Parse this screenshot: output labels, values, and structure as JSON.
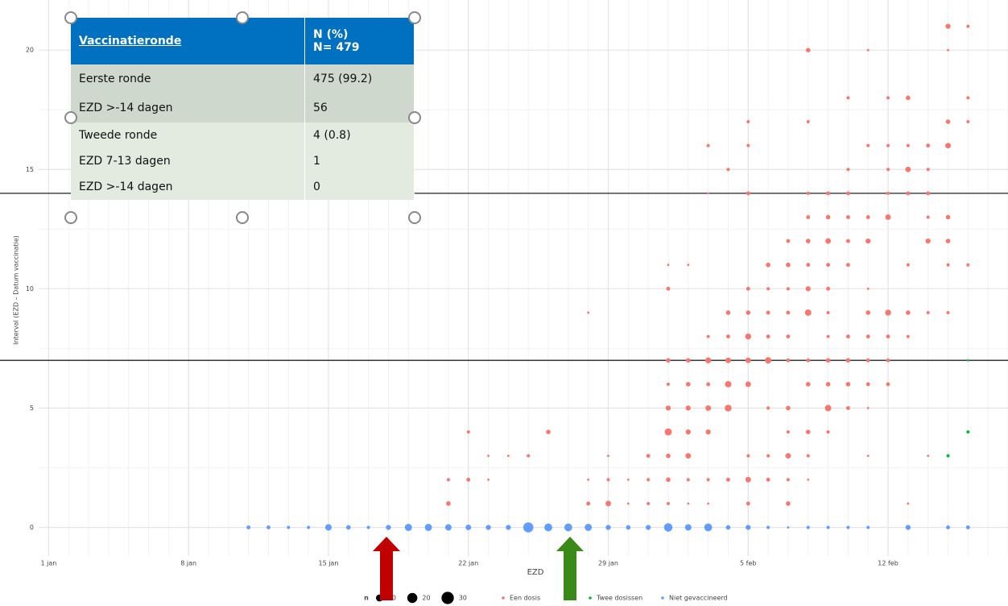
{
  "chart_data": {
    "type": "scatter",
    "x_label": "EZD",
    "y_label": "Interval (EZD – Datum vaccinatie)",
    "xlim": [
      -0.5,
      48
    ],
    "ylim": [
      -1.2,
      22.1
    ],
    "xticks": [
      {
        "value": 0,
        "label": "1 jan"
      },
      {
        "value": 7,
        "label": "8 jan"
      },
      {
        "value": 14,
        "label": "15 jan"
      },
      {
        "value": 21,
        "label": "22 jan"
      },
      {
        "value": 28,
        "label": "29 jan"
      },
      {
        "value": 35,
        "label": "5 feb"
      },
      {
        "value": 42,
        "label": "12 feb"
      }
    ],
    "yticks": [
      0,
      5,
      10,
      15,
      20
    ],
    "grid": true,
    "reference_lines": [
      7,
      14
    ],
    "size_legend": {
      "title": "n",
      "values": [
        10,
        20,
        30
      ]
    },
    "series": [
      {
        "name": "Een dosis",
        "color": "#f8766d",
        "x": [
          45,
          46,
          38,
          41,
          45,
          40,
          42,
          43,
          46,
          35,
          38,
          45,
          46,
          33,
          35,
          41,
          42,
          43,
          44,
          45,
          34,
          40,
          42,
          43,
          44,
          33,
          35,
          38,
          39,
          40,
          42,
          43,
          44,
          38,
          39,
          40,
          41,
          42,
          44,
          45,
          37,
          38,
          39,
          40,
          41,
          44,
          45,
          31,
          32,
          36,
          37,
          38,
          39,
          40,
          43,
          45,
          46,
          31,
          35,
          36,
          37,
          38,
          39,
          41,
          27,
          34,
          35,
          36,
          37,
          38,
          39,
          41,
          42,
          43,
          44,
          45,
          33,
          34,
          35,
          36,
          37,
          39,
          40,
          41,
          42,
          43,
          31,
          32,
          33,
          34,
          35,
          36,
          37,
          38,
          39,
          40,
          41,
          42,
          31,
          32,
          33,
          34,
          35,
          38,
          39,
          40,
          41,
          42,
          31,
          32,
          33,
          34,
          36,
          37,
          39,
          40,
          41,
          21,
          25,
          31,
          32,
          33,
          37,
          38,
          39,
          22,
          23,
          24,
          28,
          30,
          31,
          32,
          35,
          36,
          37,
          38,
          41,
          44,
          20,
          21,
          22,
          27,
          28,
          29,
          30,
          31,
          32,
          33,
          34,
          35,
          36,
          37,
          38,
          20,
          27,
          28,
          29,
          30,
          31,
          32,
          33,
          35,
          37,
          43
        ],
        "values": [
          21,
          21,
          20,
          20,
          20,
          18,
          18,
          18,
          18,
          17,
          17,
          17,
          17,
          16,
          16,
          16,
          16,
          16,
          16,
          16,
          15,
          15,
          15,
          15,
          15,
          14,
          14,
          14,
          14,
          14,
          14,
          14,
          14,
          13,
          13,
          13,
          13,
          13,
          13,
          13,
          12,
          12,
          12,
          12,
          12,
          12,
          12,
          11,
          11,
          11,
          11,
          11,
          11,
          11,
          11,
          11,
          11,
          10,
          10,
          10,
          10,
          10,
          10,
          10,
          9,
          9,
          9,
          9,
          9,
          9,
          9,
          9,
          9,
          9,
          9,
          9,
          8,
          8,
          8,
          8,
          8,
          8,
          8,
          8,
          8,
          8,
          7,
          7,
          7,
          7,
          7,
          7,
          7,
          7,
          7,
          7,
          7,
          7,
          6,
          6,
          6,
          6,
          6,
          6,
          6,
          6,
          6,
          6,
          5,
          5,
          5,
          5,
          5,
          5,
          5,
          5,
          5,
          4,
          4,
          4,
          4,
          4,
          4,
          4,
          4,
          3,
          3,
          3,
          3,
          3,
          3,
          3,
          3,
          3,
          3,
          3,
          3,
          3,
          2,
          2,
          2,
          2,
          2,
          2,
          2,
          2,
          2,
          2,
          2,
          2,
          2,
          2,
          2,
          1,
          1,
          1,
          1,
          1,
          1,
          1,
          1,
          1,
          1,
          1
        ],
        "sizes": [
          5,
          2,
          4,
          1,
          1,
          2,
          2,
          4,
          2,
          2,
          2,
          4,
          2,
          2,
          2,
          2,
          2,
          2,
          3,
          6,
          2,
          2,
          2,
          6,
          2,
          1,
          3,
          2,
          3,
          3,
          2,
          3,
          3,
          3,
          4,
          3,
          3,
          6,
          2,
          4,
          3,
          4,
          6,
          3,
          5,
          5,
          4,
          1,
          1,
          4,
          4,
          3,
          3,
          3,
          2,
          2,
          2,
          3,
          3,
          2,
          2,
          5,
          3,
          1,
          1,
          4,
          4,
          3,
          3,
          8,
          2,
          4,
          7,
          4,
          2,
          2,
          2,
          3,
          7,
          3,
          3,
          2,
          3,
          3,
          3,
          2,
          4,
          4,
          7,
          6,
          6,
          8,
          3,
          3,
          4,
          4,
          3,
          3,
          2,
          4,
          3,
          8,
          6,
          4,
          4,
          4,
          3,
          3,
          5,
          5,
          6,
          9,
          2,
          4,
          8,
          3,
          1,
          2,
          4,
          10,
          5,
          5,
          2,
          4,
          2,
          1,
          1,
          2,
          1,
          3,
          4,
          6,
          2,
          2,
          6,
          2,
          1,
          1,
          2,
          3,
          1,
          1,
          2,
          1,
          2,
          4,
          2,
          2,
          3,
          6,
          3,
          2,
          1,
          4,
          3,
          6,
          1,
          2,
          2,
          1,
          1,
          3,
          4,
          1
        ]
      },
      {
        "name": "Twee dosissen",
        "color": "#00ba38",
        "x": [
          45,
          46,
          46
        ],
        "values": [
          3,
          4,
          7
        ],
        "sizes": [
          2,
          2,
          1
        ]
      },
      {
        "name": "Niet gevaccineerd",
        "color": "#619cff",
        "x": [
          10,
          11,
          12,
          13,
          14,
          15,
          16,
          17,
          18,
          19,
          20,
          21,
          22,
          23,
          24,
          25,
          26,
          27,
          28,
          29,
          30,
          31,
          32,
          33,
          34,
          35,
          36,
          37,
          38,
          39,
          40,
          41,
          43,
          45,
          46
        ],
        "values": [
          0,
          0,
          0,
          0,
          0,
          0,
          0,
          0,
          0,
          0,
          0,
          0,
          0,
          0,
          0,
          0,
          0,
          0,
          0,
          0,
          0,
          0,
          0,
          0,
          0,
          0,
          0,
          0,
          0,
          0,
          0,
          0,
          0,
          0,
          0
        ],
        "sizes": [
          3,
          3,
          2,
          2,
          8,
          4,
          2,
          5,
          10,
          10,
          8,
          6,
          5,
          5,
          20,
          12,
          12,
          10,
          5,
          4,
          5,
          14,
          8,
          12,
          4,
          5,
          2,
          1,
          2,
          2,
          2,
          2,
          5,
          3,
          3
        ]
      }
    ]
  },
  "table_overlay": {
    "header": [
      "Vaccinatieronde",
      "N (%)",
      "N= 479"
    ],
    "rows": [
      [
        "Eerste ronde",
        "475 (99.2)"
      ],
      [
        "EZD >-14 dagen",
        "56"
      ],
      [
        "Tweede ronde",
        "4 (0.8)"
      ],
      [
        "EZD 7-13 dagen",
        "1"
      ],
      [
        "EZD >-14 dagen",
        "0"
      ]
    ]
  }
}
